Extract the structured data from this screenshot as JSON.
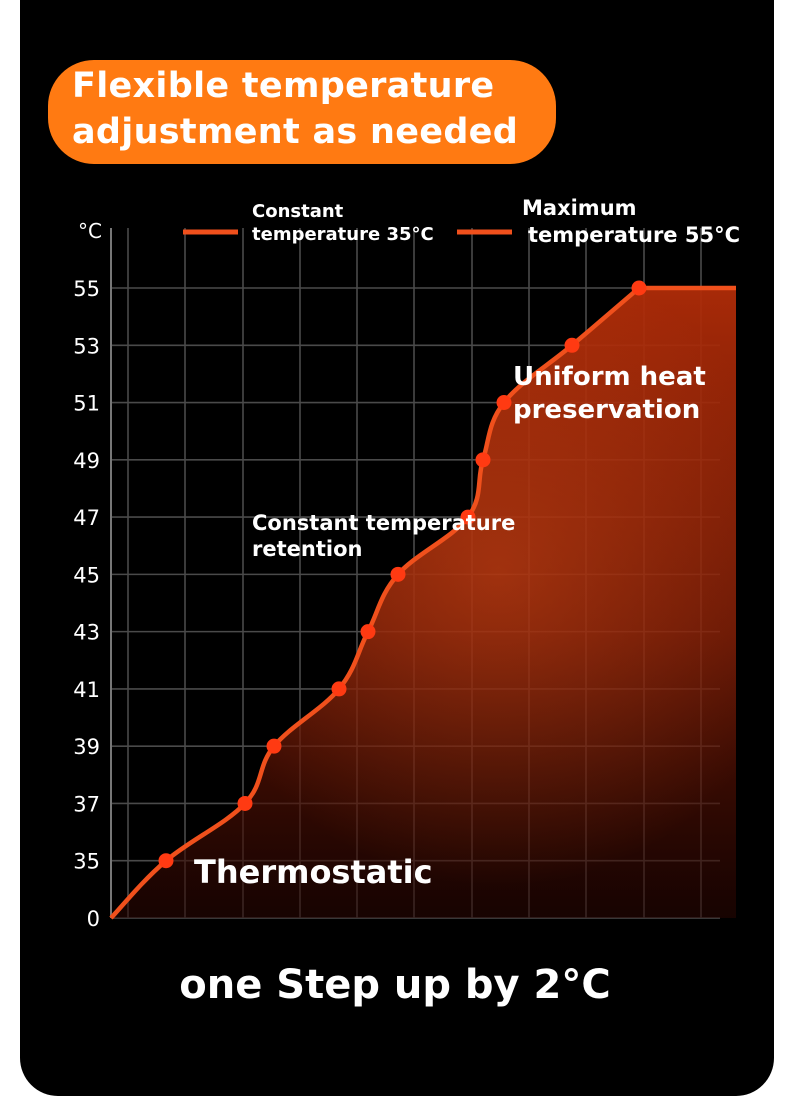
{
  "header": {
    "title_line1": "Flexible temperature",
    "title_line2": "adjustment as needed"
  },
  "colors": {
    "accent": "#ff7a12",
    "line": "#f0501c",
    "point": "#ff3a12",
    "fill_top": "#a82a08",
    "background": "#000000",
    "grid": "#555555"
  },
  "chart_data": {
    "type": "area",
    "ylabel": "°C",
    "y_ticks": [
      "0",
      "35",
      "37",
      "39",
      "41",
      "43",
      "45",
      "47",
      "49",
      "51",
      "53",
      "55"
    ],
    "grid": true,
    "legend_position": "top",
    "legend": [
      {
        "label_line1": "Constant",
        "label_line2": "temperature 35°C"
      },
      {
        "label_line1": "Maximum",
        "label_line2": "temperature 55°C"
      }
    ],
    "series": [
      {
        "points_y": [
          "0",
          "35",
          "37",
          "39",
          "41",
          "43",
          "45",
          "47",
          "49",
          "51",
          "53",
          "55"
        ]
      }
    ],
    "annotations": {
      "thermostatic": "Thermostatic",
      "retention_line1": "Constant temperature",
      "retention_line2": "retention",
      "uniform_line1": "Uniform heat",
      "uniform_line2": "preservation"
    },
    "footer": "one Step up by 2°C"
  }
}
